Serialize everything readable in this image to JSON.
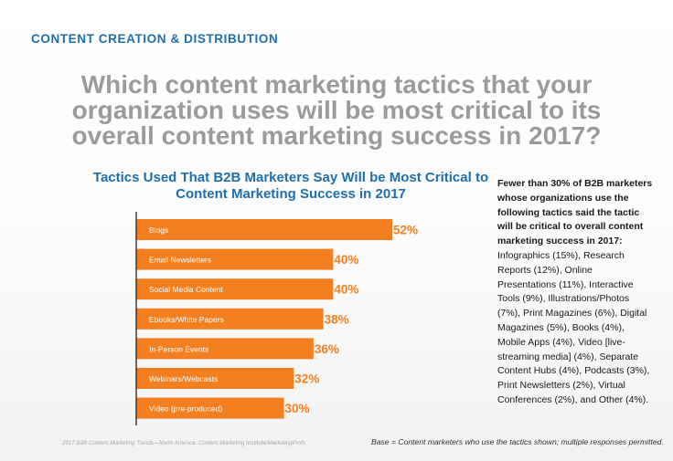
{
  "section_label": "CONTENT CREATION & DISTRIBUTION",
  "question": "Which content marketing tactics that your organization uses will be most critical to its overall content marketing success in 2017?",
  "sidebar": {
    "bold": "Fewer than 30% of B2B marketers whose organizations use the following tactics said the tactic will be critical to overall content marketing success in 2017:",
    "rest": " Infographics (15%), Research Reports (12%), Online Presentations (11%), Interactive Tools (9%), Illustrations/Photos (7%), Print Magazines (6%), Digital Magazines (5%), Books (4%), Mobile Apps (4%), Video [live-streaming media] (4%), Separate Content Hubs (4%), Podcasts (3%), Print Newsletters (2%), Virtual Conferences (2%), and Other (4%)."
  },
  "footer": {
    "source": "2017 B2B Content Marketing Trends—North America: Content Marketing Institute/MarketingProfs",
    "base": "Base = Content marketers who use the tactics shown; multiple responses permitted."
  },
  "colors": {
    "bar": "#f47f20",
    "value_label": "#f47f20",
    "title": "#1f6fae",
    "question": "#9b9b9b"
  },
  "chart_data": {
    "type": "bar",
    "orientation": "horizontal",
    "title": "Tactics Used That B2B Marketers Say Will be Most Critical to Content Marketing Success in 2017",
    "categories": [
      "Blogs",
      "Email Newsletters",
      "Social Media Content",
      "Ebooks/White Papers",
      "In-Person Events",
      "Webinars/Webcasts",
      "Video (pre-produced)"
    ],
    "values": [
      52,
      40,
      40,
      38,
      36,
      32,
      30
    ],
    "value_labels": [
      "52%",
      "40%",
      "40%",
      "38%",
      "36%",
      "32%",
      "30%"
    ],
    "xlim": [
      0,
      100
    ],
    "grid": false,
    "legend": "none"
  }
}
